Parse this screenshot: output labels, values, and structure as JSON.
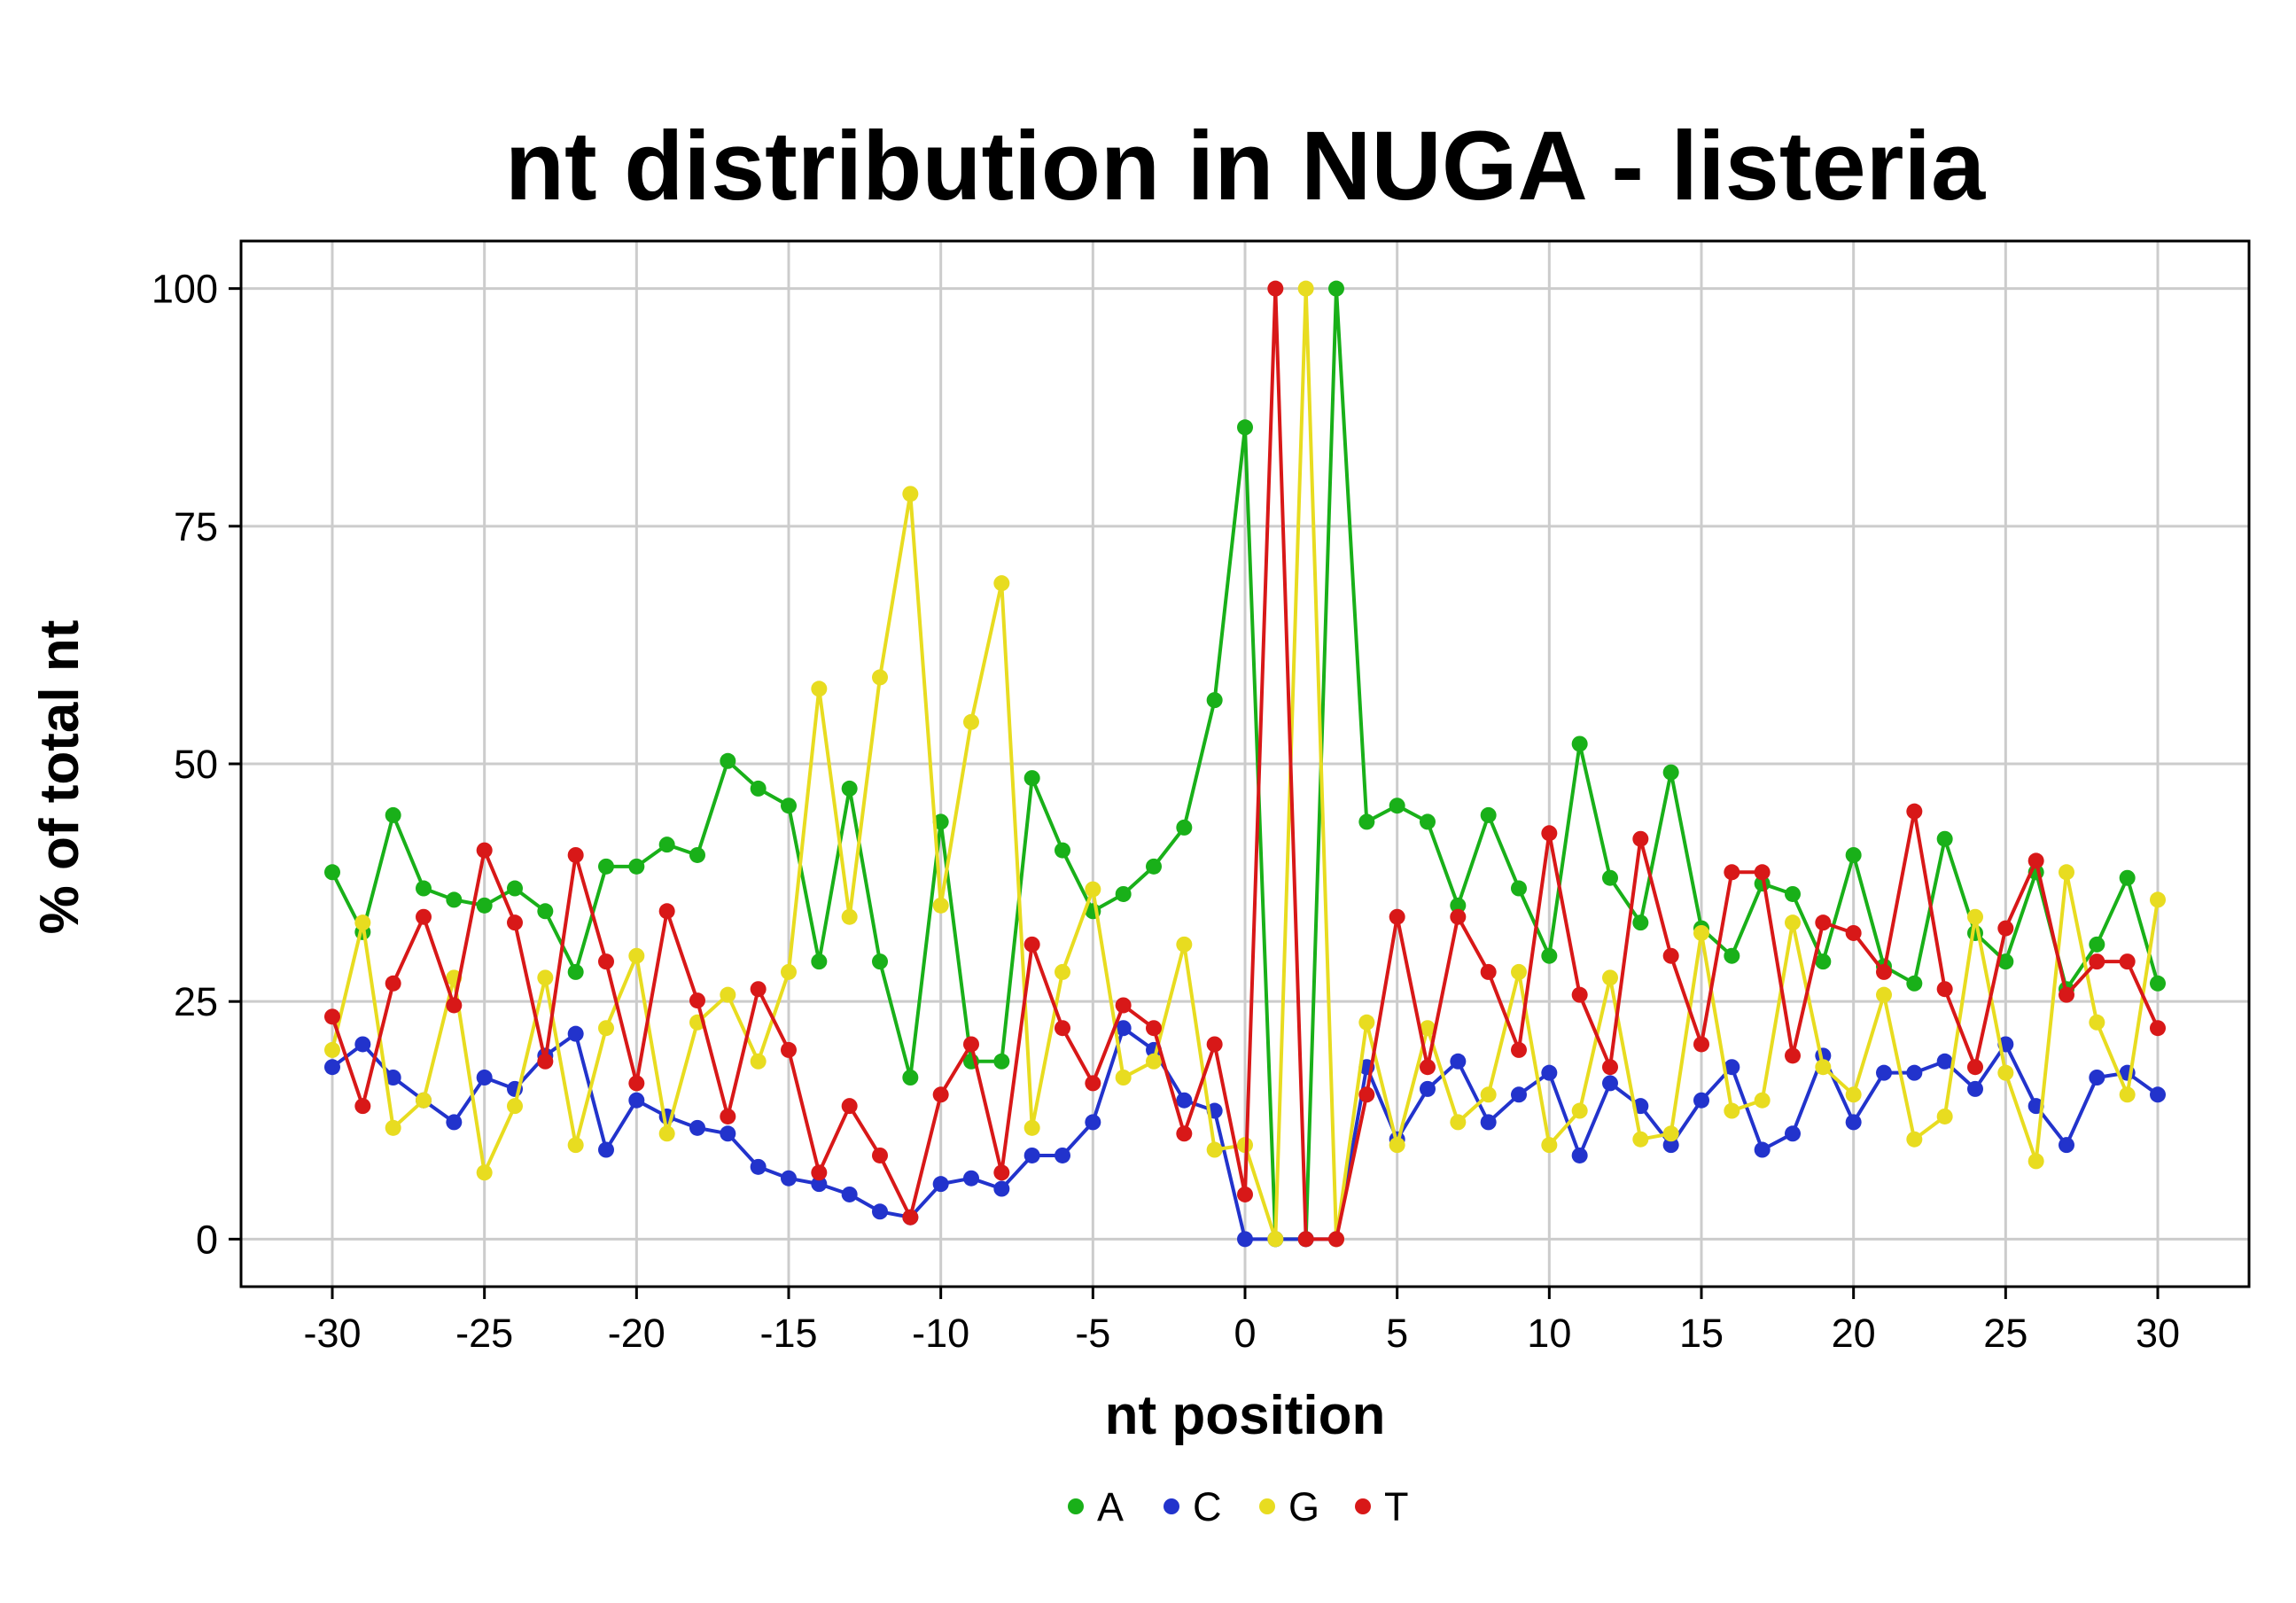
{
  "chart_data": {
    "type": "line",
    "title": "nt distribution in NUGA - listeria",
    "xlabel": "nt position",
    "ylabel": "% of total nt",
    "xlim": [
      -33,
      33
    ],
    "ylim": [
      -5,
      105
    ],
    "x_ticks": [
      -30,
      -25,
      -20,
      -15,
      -10,
      -5,
      0,
      5,
      10,
      15,
      20,
      25,
      30
    ],
    "x_tick_labels": [
      "-30",
      "-25",
      "-20",
      "-15",
      "-10",
      "-5",
      "0",
      "5",
      "10",
      "15",
      "20",
      "25",
      "30"
    ],
    "y_ticks": [
      0,
      25,
      50,
      75,
      100
    ],
    "y_tick_labels": [
      "0",
      "25",
      "50",
      "75",
      "100"
    ],
    "grid": true,
    "legend": "bottom",
    "x": [
      -30,
      -29,
      -28,
      -27,
      -26,
      -25,
      -24,
      -23,
      -22,
      -21,
      -20,
      -19,
      -18,
      -17,
      -16,
      -15,
      -14,
      -13,
      -12,
      -11,
      -10,
      -9,
      -8,
      -7,
      -6,
      -5,
      -4,
      -3,
      -2,
      -1,
      0,
      1,
      2,
      3,
      4,
      5,
      6,
      7,
      8,
      9,
      10,
      11,
      12,
      13,
      14,
      15,
      16,
      17,
      18,
      19,
      20,
      21,
      22,
      23,
      24,
      25,
      26,
      27,
      28,
      29,
      30
    ],
    "series": [
      {
        "name": "A",
        "color": "#19b019",
        "values": [
          38.6,
          32.3,
          44.6,
          36.9,
          35.7,
          35.1,
          36.9,
          34.5,
          28.1,
          39.2,
          39.2,
          41.5,
          40.4,
          50.3,
          47.4,
          45.6,
          29.2,
          47.4,
          29.2,
          17.0,
          43.9,
          18.7,
          18.7,
          48.5,
          40.9,
          34.5,
          36.3,
          39.2,
          43.3,
          56.7,
          85.4,
          0,
          0,
          100,
          43.9,
          45.6,
          43.9,
          35.1,
          44.6,
          36.9,
          29.8,
          52.1,
          38.0,
          33.3,
          49.1,
          32.7,
          29.8,
          37.4,
          36.3,
          29.2,
          40.4,
          28.7,
          26.9,
          42.1,
          32.2,
          29.2,
          38.6,
          26.3,
          31.0,
          38.0,
          26.9
        ]
      },
      {
        "name": "C",
        "color": "#2233cc",
        "values": [
          18.1,
          20.5,
          17.0,
          14.6,
          12.3,
          17.0,
          15.8,
          19.3,
          21.6,
          9.4,
          14.6,
          12.9,
          11.7,
          11.1,
          7.6,
          6.4,
          5.8,
          4.7,
          2.9,
          2.3,
          5.8,
          6.4,
          5.3,
          8.8,
          8.8,
          12.3,
          22.2,
          19.9,
          14.6,
          13.5,
          0,
          0,
          0,
          0,
          18.1,
          10.5,
          15.8,
          18.7,
          12.3,
          15.2,
          17.5,
          8.8,
          16.4,
          14.0,
          9.9,
          14.6,
          18.1,
          9.4,
          11.1,
          19.3,
          12.3,
          17.5,
          17.5,
          18.7,
          15.8,
          20.5,
          14.0,
          9.9,
          17.0,
          17.5,
          15.2
        ]
      },
      {
        "name": "G",
        "color": "#e8dc20",
        "values": [
          19.9,
          33.3,
          11.7,
          14.6,
          27.5,
          7.0,
          14.0,
          27.5,
          9.9,
          22.2,
          29.8,
          11.1,
          22.8,
          25.7,
          18.7,
          28.1,
          57.9,
          33.9,
          59.1,
          78.4,
          35.1,
          54.4,
          69.0,
          11.7,
          28.1,
          36.8,
          17.0,
          18.7,
          31.0,
          9.4,
          9.9,
          0,
          100,
          0,
          22.8,
          9.9,
          22.2,
          12.3,
          15.2,
          28.1,
          9.9,
          13.5,
          27.5,
          10.5,
          11.1,
          32.2,
          13.5,
          14.6,
          33.3,
          18.1,
          15.2,
          25.7,
          10.5,
          12.9,
          33.9,
          17.5,
          8.2,
          38.6,
          22.8,
          15.2,
          35.7
        ]
      },
      {
        "name": "T",
        "color": "#d81818",
        "values": [
          23.4,
          14.0,
          26.9,
          33.9,
          24.6,
          40.9,
          33.3,
          18.7,
          40.4,
          29.2,
          16.4,
          34.5,
          25.1,
          12.9,
          26.3,
          19.9,
          7.0,
          14.0,
          8.8,
          2.3,
          15.2,
          20.5,
          7.0,
          31.0,
          22.2,
          16.4,
          24.6,
          22.2,
          11.1,
          20.5,
          4.7,
          100,
          0,
          0,
          15.2,
          33.9,
          18.1,
          33.9,
          28.1,
          19.9,
          42.7,
          25.7,
          18.1,
          42.1,
          29.8,
          20.5,
          38.6,
          38.6,
          19.3,
          33.3,
          32.2,
          28.1,
          45.0,
          26.3,
          18.1,
          32.7,
          39.8,
          25.7,
          29.2,
          29.2,
          22.2
        ]
      }
    ]
  }
}
